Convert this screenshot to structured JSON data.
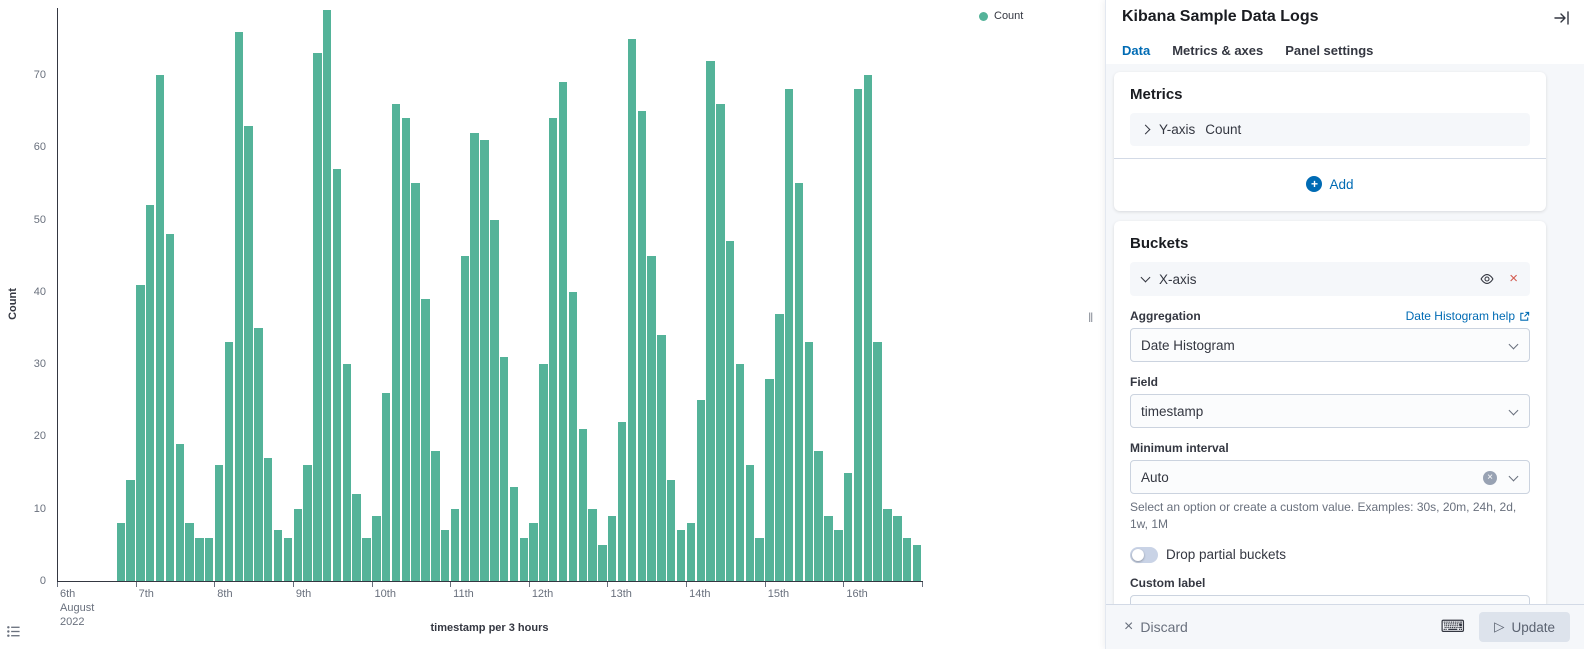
{
  "chart_data": {
    "type": "bar",
    "title": "",
    "xlabel": "timestamp per 3 hours",
    "ylabel": "Count",
    "legend": [
      "Count"
    ],
    "legend_position": "top-right",
    "bar_color": "#54B399",
    "grid": false,
    "ylim": [
      0,
      80
    ],
    "yticks": [
      0,
      10,
      20,
      30,
      40,
      50,
      60,
      70
    ],
    "buckets_per_day": 8,
    "x_tick_labels": [
      [
        "6th",
        "August",
        "2022"
      ],
      [
        "7th"
      ],
      [
        "8th"
      ],
      [
        "9th"
      ],
      [
        "10th"
      ],
      [
        "11th"
      ],
      [
        "12th"
      ],
      [
        "13th"
      ],
      [
        "14th"
      ],
      [
        "15th"
      ],
      [
        "16th"
      ]
    ],
    "values": [
      0,
      0,
      0,
      0,
      0,
      0,
      8,
      14,
      41,
      52,
      70,
      48,
      19,
      8,
      6,
      6,
      16,
      33,
      76,
      63,
      35,
      17,
      7,
      6,
      10,
      16,
      73,
      79,
      57,
      30,
      12,
      6,
      9,
      26,
      66,
      64,
      55,
      39,
      18,
      7,
      10,
      45,
      62,
      61,
      50,
      31,
      13,
      6,
      8,
      30,
      64,
      69,
      40,
      21,
      10,
      5,
      9,
      22,
      75,
      65,
      45,
      34,
      14,
      7,
      8,
      25,
      72,
      66,
      47,
      30,
      16,
      6,
      28,
      37,
      68,
      55,
      33,
      18,
      9,
      7,
      15,
      68,
      70,
      33,
      10,
      9,
      6,
      5
    ]
  },
  "chart": {
    "legend_label": "Count",
    "y_axis_title": "Count",
    "x_axis_title": "timestamp per 3 hours"
  },
  "sidebar": {
    "title": "Kibana Sample Data Logs",
    "tabs": [
      {
        "label": "Data",
        "active": true
      },
      {
        "label": "Metrics & axes",
        "active": false
      },
      {
        "label": "Panel settings",
        "active": false
      }
    ],
    "metrics": {
      "heading": "Metrics",
      "row_label": "Y-axis",
      "row_value": "Count",
      "add_label": "Add"
    },
    "buckets": {
      "heading": "Buckets",
      "row_label": "X-axis",
      "aggregation_label": "Aggregation",
      "aggregation_help_link": "Date Histogram help",
      "aggregation_value": "Date Histogram",
      "field_label": "Field",
      "field_value": "timestamp",
      "interval_label": "Minimum interval",
      "interval_value": "Auto",
      "interval_help": "Select an option or create a custom value. Examples: 30s, 20m, 24h, 2d, 1w, 1M",
      "drop_partial_label": "Drop partial buckets",
      "drop_partial_enabled": false,
      "custom_label_label": "Custom label",
      "custom_label_value": ""
    },
    "footer": {
      "discard_label": "Discard",
      "update_label": "Update"
    }
  },
  "icons": {
    "close": "×",
    "plus": "+",
    "play": "▷",
    "keyboard": "⌨",
    "resizer": "‖"
  },
  "colors": {
    "bar": "#54B399",
    "accent": "#006BB4",
    "danger": "#D35A4F"
  }
}
